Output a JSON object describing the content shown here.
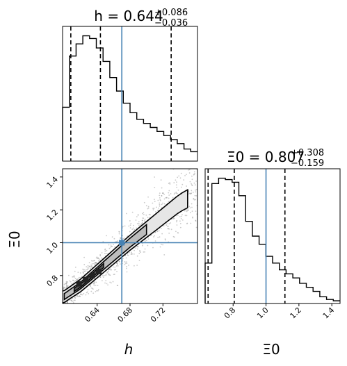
{
  "chart_data": [
    {
      "type": "histogram",
      "panel": "top-left",
      "parameter": "h",
      "title": {
        "base": "h = 0.644",
        "sup": "+0.086",
        "sub": "−0.036"
      },
      "xlim": [
        0.598,
        0.762
      ],
      "quantiles": [
        0.608,
        0.644,
        0.73
      ],
      "truth": 0.67,
      "bin_edges": [
        0.598,
        0.6062,
        0.6144,
        0.6226,
        0.6308,
        0.639,
        0.6472,
        0.6554,
        0.6636,
        0.6718,
        0.68,
        0.6882,
        0.6964,
        0.7046,
        0.7128,
        0.721,
        0.7292,
        0.7374,
        0.7456,
        0.7538,
        0.762
      ],
      "counts": [
        0.4,
        0.78,
        0.87,
        0.93,
        0.91,
        0.84,
        0.74,
        0.62,
        0.52,
        0.43,
        0.36,
        0.31,
        0.28,
        0.25,
        0.22,
        0.19,
        0.16,
        0.13,
        0.09,
        0.07
      ],
      "ylim": [
        0,
        1.0
      ],
      "colors": {
        "truth": "#4682b4",
        "line": "#000000"
      }
    },
    {
      "type": "contour",
      "panel": "bottom-left",
      "xlabel": "h",
      "ylabel": "Ξ0",
      "xlim": [
        0.598,
        0.762
      ],
      "ylim": [
        0.63,
        1.45
      ],
      "xticks": [
        "0.64",
        "0.68",
        "0.72"
      ],
      "yticks": [
        "0.8",
        "1.0",
        "1.2",
        "1.4"
      ],
      "truth": [
        0.67,
        1.0
      ],
      "ridge": [
        [
          0.598,
          0.665
        ],
        [
          0.62,
          0.74
        ],
        [
          0.65,
          0.87
        ],
        [
          0.68,
          1.0
        ],
        [
          0.71,
          1.12
        ],
        [
          0.74,
          1.24
        ],
        [
          0.762,
          1.3
        ]
      ],
      "colors": {
        "truth": "#4682b4",
        "line": "#000000"
      }
    },
    {
      "type": "histogram",
      "panel": "bottom-right",
      "parameter": "Ξ0",
      "title": {
        "base": "Ξ0 = 0.807",
        "sup": "+0.308",
        "sub": "−0.159"
      },
      "xlabel": "Ξ0",
      "xlim": [
        0.63,
        1.45
      ],
      "xticks": [
        "0.8",
        "1.0",
        "1.2",
        "1.4"
      ],
      "quantiles": [
        0.648,
        0.807,
        1.115
      ],
      "truth": 1.0,
      "bin_edges": [
        0.63,
        0.671,
        0.712,
        0.753,
        0.794,
        0.835,
        0.876,
        0.917,
        0.958,
        0.999,
        1.04,
        1.081,
        1.122,
        1.163,
        1.204,
        1.245,
        1.286,
        1.327,
        1.368,
        1.409,
        1.45
      ],
      "counts": [
        0.3,
        0.89,
        0.93,
        0.92,
        0.9,
        0.8,
        0.61,
        0.5,
        0.44,
        0.35,
        0.3,
        0.25,
        0.22,
        0.19,
        0.15,
        0.12,
        0.09,
        0.05,
        0.03,
        0.02
      ],
      "ylim": [
        0,
        1.0
      ],
      "colors": {
        "truth": "#4682b4",
        "line": "#000000"
      }
    }
  ]
}
